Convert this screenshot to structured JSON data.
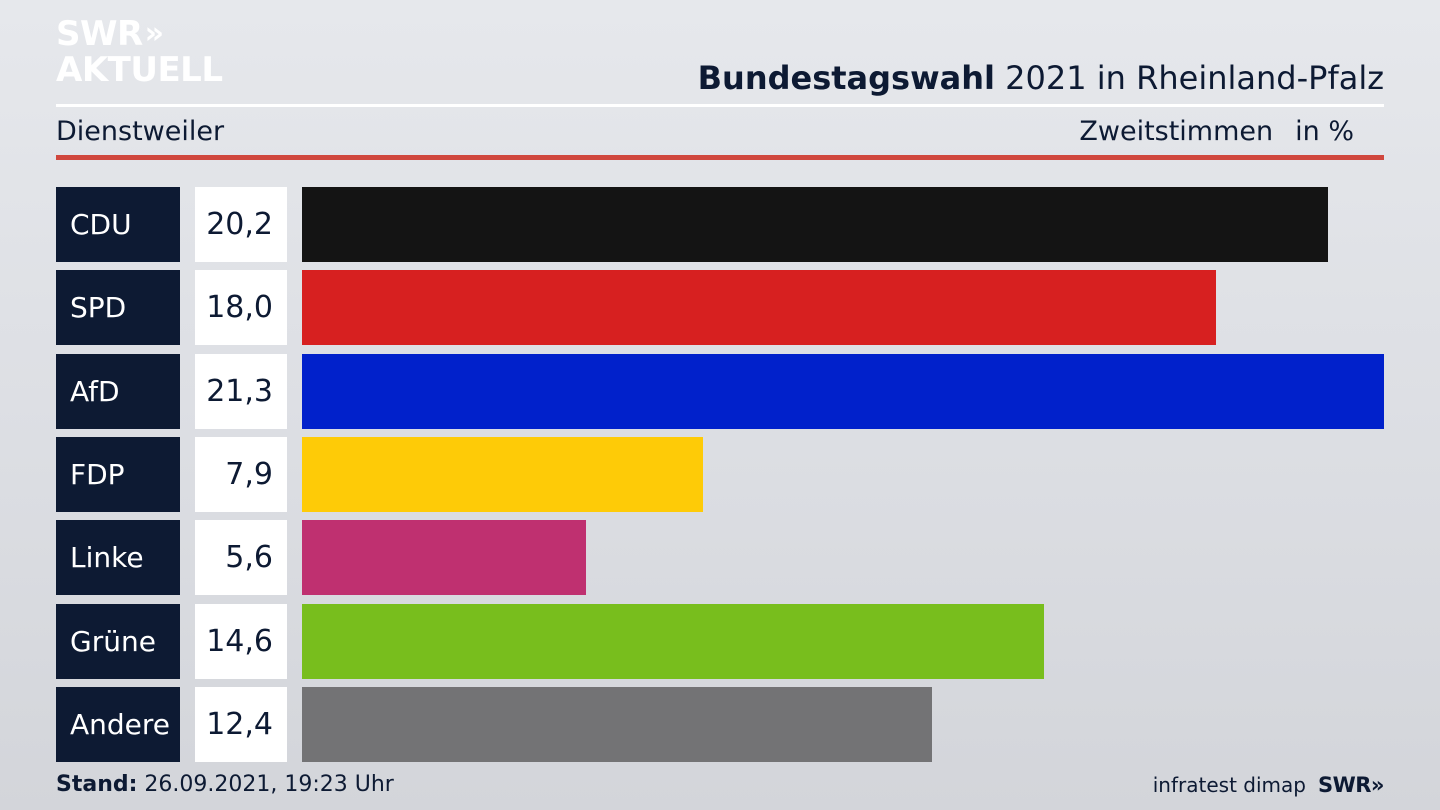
{
  "header": {
    "logo_line1": "SWR",
    "logo_line2": "AKTUELL",
    "title_bold": "Bundestagswahl",
    "title_rest": " 2021 in Rheinland-Pfalz"
  },
  "subheader": {
    "location": "Dienstweiler",
    "measure": "Zweitstimmen",
    "unit": "in %"
  },
  "chart_data": {
    "type": "bar",
    "orientation": "horizontal",
    "categories": [
      "CDU",
      "SPD",
      "AfD",
      "FDP",
      "Linke",
      "Grüne",
      "Andere"
    ],
    "values": [
      20.2,
      18.0,
      21.3,
      7.9,
      5.6,
      14.6,
      12.4
    ],
    "value_labels": [
      "20,2",
      "18,0",
      "21,3",
      "7,9",
      "5,6",
      "14,6",
      "12,4"
    ],
    "colors": [
      "#141414",
      "#d72020",
      "#0121cb",
      "#fecb07",
      "#bf3070",
      "#78be1d",
      "#737375"
    ],
    "xlim": [
      0,
      21.3
    ],
    "grid": false,
    "legend": "none"
  },
  "footer": {
    "stand_label": "Stand:",
    "stand_value": " 26.09.2021, 19:23 Uhr",
    "source": "infratest dimap",
    "brand": "SWR"
  }
}
